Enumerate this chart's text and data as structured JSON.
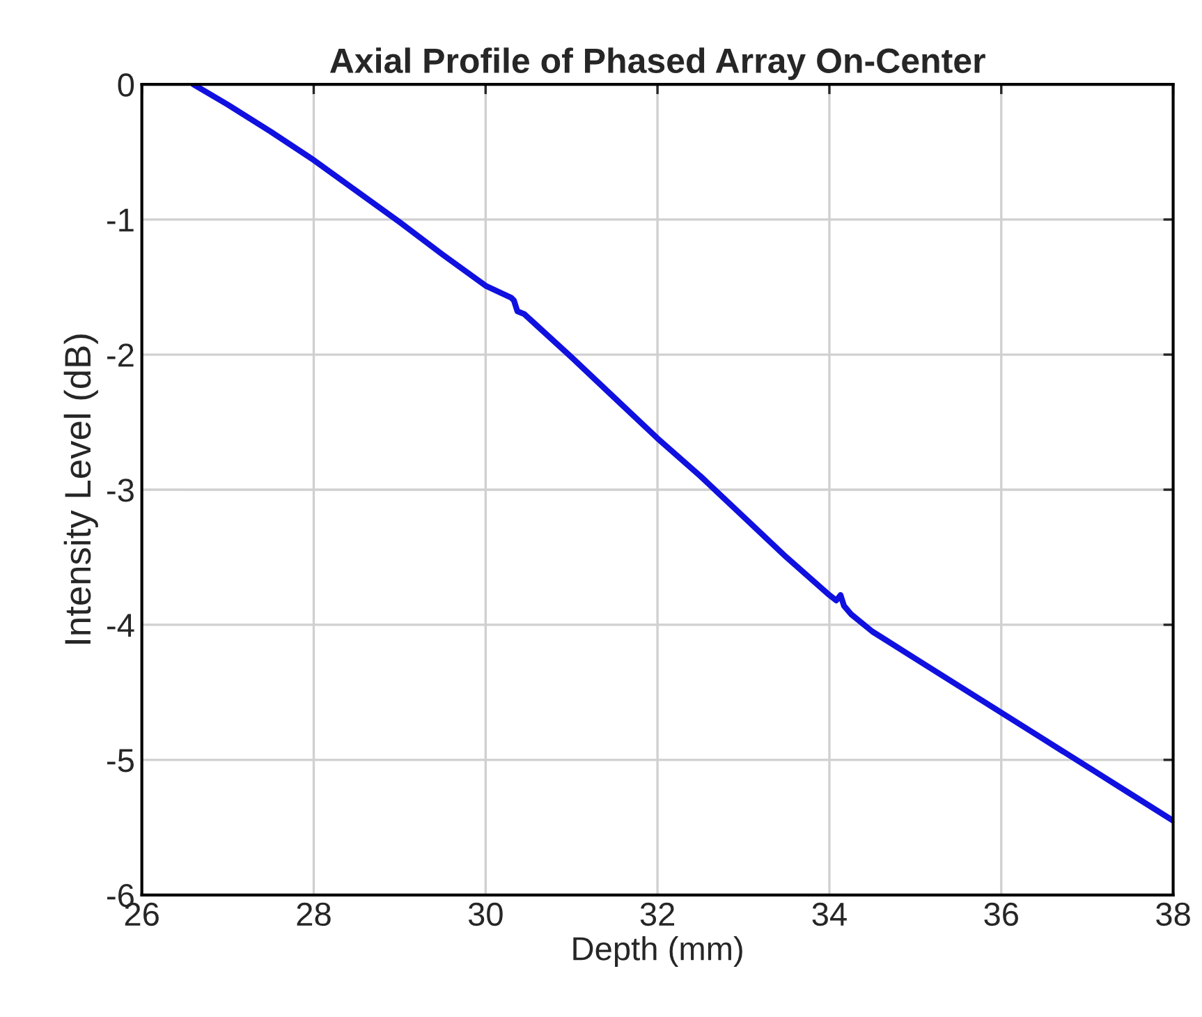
{
  "chart_data": {
    "type": "line",
    "title": "Axial Profile of Phased Array On-Center",
    "xlabel": "Depth (mm)",
    "ylabel": "Intensity Level (dB)",
    "series": [
      {
        "color": "#1010e0",
        "x": [
          26.6,
          27.0,
          27.5,
          28.0,
          28.5,
          29.0,
          29.5,
          30.0,
          30.3,
          30.33,
          30.37,
          30.45,
          31.0,
          31.5,
          32.0,
          32.5,
          33.0,
          33.5,
          34.0,
          34.08,
          34.13,
          34.17,
          34.25,
          34.5,
          35.0,
          35.5,
          36.0,
          36.5,
          37.0,
          37.5,
          38.0
        ],
        "values": [
          0,
          -0.15,
          -0.35,
          -0.56,
          -0.79,
          -1.02,
          -1.26,
          -1.49,
          -1.58,
          -1.6,
          -1.68,
          -1.7,
          -2.02,
          -2.32,
          -2.62,
          -2.9,
          -3.2,
          -3.5,
          -3.78,
          -3.82,
          -3.78,
          -3.86,
          -3.92,
          -4.05,
          -4.25,
          -4.45,
          -4.65,
          -4.85,
          -5.05,
          -5.25,
          -5.45
        ]
      }
    ],
    "xlim": [
      26,
      38
    ],
    "xticks": [
      26,
      28,
      30,
      32,
      34,
      36,
      38
    ],
    "ylim": [
      -6,
      0
    ],
    "yticks": [
      -6,
      -5,
      -4,
      -3,
      -2,
      -1,
      0
    ],
    "grid": true,
    "legend": false
  }
}
